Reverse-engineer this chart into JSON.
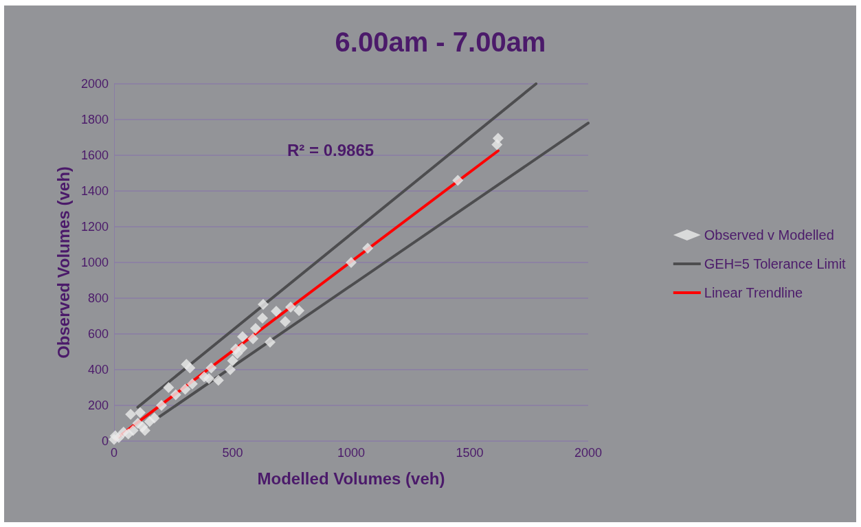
{
  "chart_data": {
    "type": "scatter",
    "title": "6.00am - 7.00am",
    "xlabel": "Modelled Volumes (veh)",
    "ylabel": "Observed Volumes (veh)",
    "xlim": [
      0,
      2000
    ],
    "xticks": [
      0,
      500,
      1000,
      1500,
      2000
    ],
    "ylim": [
      0,
      2000
    ],
    "yticks": [
      0,
      200,
      400,
      600,
      800,
      1000,
      1200,
      1400,
      1600,
      1800,
      2000
    ],
    "grid": "y",
    "legend": "right",
    "annotations": [
      "R² = 0.9865"
    ],
    "series": [
      {
        "name": "Observed v Modelled",
        "color": "#ebebeb",
        "marker": "diamond",
        "x": [
          0,
          5,
          20,
          40,
          60,
          70,
          80,
          100,
          110,
          120,
          130,
          150,
          170,
          200,
          230,
          260,
          300,
          305,
          320,
          330,
          380,
          400,
          410,
          440,
          490,
          500,
          513,
          520,
          542,
          540,
          586,
          597,
          626,
          629,
          658,
          684,
          722,
          745,
          780,
          1000,
          1070,
          1450,
          1615,
          1620
        ],
        "values": [
          10,
          30,
          20,
          50,
          40,
          150,
          60,
          100,
          160,
          80,
          60,
          110,
          130,
          200,
          300,
          260,
          290,
          430,
          410,
          320,
          360,
          350,
          410,
          340,
          400,
          450,
          515,
          490,
          585,
          520,
          573,
          631,
          688,
          765,
          554,
          727,
          669,
          750,
          731,
          1000,
          1080,
          1460,
          1660,
          1695
        ]
      },
      {
        "name": "GEH=5 Tolerance Limit",
        "type": "line",
        "marker": "none",
        "color": "#4d4d4f",
        "x": [
          100,
          1780
        ],
        "values": [
          190,
          2000
        ]
      },
      {
        "type": "line",
        "marker": "none",
        "color": "#4d4d4f",
        "x": [
          190,
          2000
        ],
        "values": [
          135,
          1780
        ]
      },
      {
        "name": "Linear Trendline",
        "type": "line",
        "marker": "none",
        "color": "#ff0000",
        "x": [
          5,
          1620
        ],
        "values": [
          10,
          1625
        ]
      }
    ]
  }
}
